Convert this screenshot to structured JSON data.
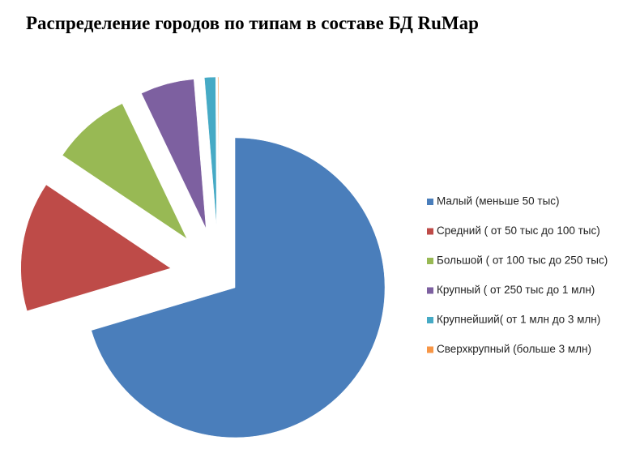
{
  "chart_data": {
    "type": "pie",
    "title": "Распределение городов по типам в составе БД RuMap",
    "categories": [
      "Малый (меньше 50 тыс)",
      "Средний ( от 50 тыс до 100 тыс)",
      "Большой ( от 100 тыс до 250 тыс)",
      "Крупный ( от 250 тыс до 1 млн)",
      "Крупнейший( от 1 млн до 3 млн)",
      "Сверхкрупный (больше  3 млн)"
    ],
    "values": [
      70.4,
      14,
      8.5,
      5.8,
      1.2,
      0.1
    ],
    "colors": [
      "#4a7ebb",
      "#be4b48",
      "#98b954",
      "#7d60a0",
      "#46aac5",
      "#f79646"
    ],
    "legend": "right",
    "exploded": true
  }
}
